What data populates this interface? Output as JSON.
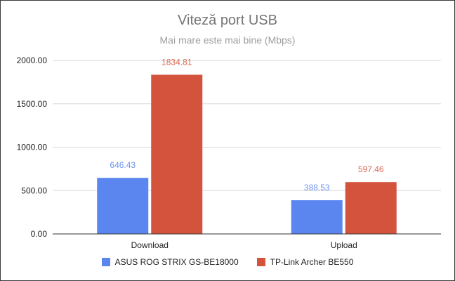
{
  "chart_data": {
    "type": "bar",
    "title": "Viteză port USB",
    "subtitle": "Mai mare este mai bine (Mbps)",
    "xlabel": "",
    "ylabel": "",
    "categories": [
      "Download",
      "Upload"
    ],
    "series": [
      {
        "name": "ASUS ROG STRIX GS-BE18000",
        "color": "#5b86f0",
        "label_color": "#6e93f2",
        "values": [
          646.43,
          388.53
        ]
      },
      {
        "name": "TP-Link Archer BE550",
        "color": "#d4533c",
        "label_color": "#d96a56",
        "values": [
          1834.81,
          597.46
        ]
      }
    ],
    "ylim": [
      0,
      2000
    ],
    "yticks": [
      "0.00",
      "500.00",
      "1000.00",
      "1500.00",
      "2000.00"
    ],
    "data_labels": [
      [
        "646.43",
        "388.53"
      ],
      [
        "1834.81",
        "597.46"
      ]
    ],
    "grid": true,
    "legend_position": "bottom"
  }
}
